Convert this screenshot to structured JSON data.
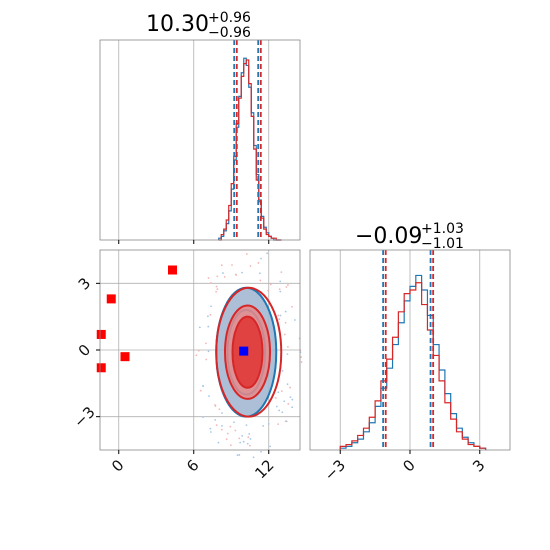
{
  "chart_data": {
    "type": "corner",
    "colors": {
      "sample_a": "#1f77b4",
      "sample_b": "#d62728",
      "marker": "#ff0000",
      "center": "#0000ff",
      "grid": "#b0b0b0"
    },
    "panels": {
      "hist_x": {
        "title": {
          "value": "10.30",
          "plus": "+0.96",
          "minus": "−0.96"
        },
        "xlim": [
          -1.5,
          14.5
        ],
        "x_ticks": [
          "0",
          "6",
          "12"
        ],
        "quantiles_x": [
          9.34,
          10.3,
          11.26
        ],
        "bins": [
          8.0,
          8.2,
          8.4,
          8.6,
          8.8,
          9.0,
          9.2,
          9.4,
          9.6,
          9.8,
          10.0,
          10.2,
          10.4,
          10.6,
          10.8,
          11.0,
          11.2,
          11.4,
          11.6,
          11.8,
          12.0,
          12.2,
          12.4,
          12.6,
          12.8,
          13.0
        ],
        "series": [
          {
            "color": "sample_a",
            "counts": [
              1,
              2,
              5,
              9,
              16,
              28,
              44,
              62,
              79,
              92,
              100,
              96,
              84,
              70,
              52,
              36,
              22,
              13,
              7,
              4,
              2,
              1,
              0,
              0,
              0
            ]
          },
          {
            "color": "sample_b",
            "counts": [
              0,
              3,
              6,
              11,
              19,
              31,
              46,
              64,
              78,
              90,
              97,
              99,
              86,
              68,
              50,
              33,
              21,
              12,
              6,
              3,
              2,
              1,
              1,
              0,
              0
            ]
          }
        ],
        "y_max": 110
      },
      "hist_y": {
        "title": {
          "value": "−0.09",
          "plus": "+1.03",
          "minus": "−1.01"
        },
        "xlim": [
          -4.3,
          4.3
        ],
        "x_ticks": [
          "−3",
          "0",
          "3"
        ],
        "quantiles_x": [
          -1.1,
          -0.09,
          0.94
        ],
        "bins": [
          -3.0,
          -2.75,
          -2.5,
          -2.25,
          -2.0,
          -1.75,
          -1.5,
          -1.25,
          -1.0,
          -0.75,
          -0.5,
          -0.25,
          0.0,
          0.25,
          0.5,
          0.75,
          1.0,
          1.25,
          1.5,
          1.75,
          2.0,
          2.25,
          2.5,
          2.75,
          3.0,
          3.25
        ],
        "series": [
          {
            "color": "sample_a",
            "counts": [
              1,
              2,
              4,
              6,
              10,
              15,
              24,
              34,
              45,
              58,
              70,
              82,
              90,
              96,
              88,
              74,
              58,
              44,
              31,
              20,
              12,
              7,
              4,
              2,
              1
            ]
          },
          {
            "color": "sample_b",
            "counts": [
              2,
              3,
              5,
              8,
              12,
              18,
              27,
              38,
              50,
              62,
              76,
              86,
              88,
              92,
              80,
              66,
              52,
              38,
              26,
              17,
              10,
              6,
              3,
              2,
              1
            ]
          }
        ],
        "y_max": 110
      },
      "scatter_2d": {
        "xlim": [
          -1.5,
          14.5
        ],
        "ylim": [
          -4.5,
          4.5
        ],
        "x_ticks": [
          "0",
          "6",
          "12"
        ],
        "y_ticks": [
          "3",
          "0",
          "−3"
        ],
        "contours": [
          {
            "color": "sample_a",
            "level": "outer",
            "cx": 10.2,
            "cy": -0.1,
            "rx": 2.4,
            "ry": 2.9
          },
          {
            "color": "sample_a",
            "level": "inner",
            "cx": 10.2,
            "cy": -0.1,
            "rx": 1.5,
            "ry": 1.9
          },
          {
            "color": "sample_b",
            "level": "outer",
            "cx": 10.4,
            "cy": -0.1,
            "rx": 2.6,
            "ry": 2.9
          },
          {
            "color": "sample_b",
            "level": "inner",
            "cx": 10.3,
            "cy": -0.1,
            "rx": 1.8,
            "ry": 2.1
          },
          {
            "color": "sample_b",
            "level": "core",
            "cx": 10.3,
            "cy": -0.1,
            "rx": 1.2,
            "ry": 1.6
          }
        ],
        "markers": [
          {
            "x": 4.3,
            "y": 3.6
          },
          {
            "x": -0.6,
            "y": 2.3
          },
          {
            "x": -1.4,
            "y": 0.7
          },
          {
            "x": 0.5,
            "y": -0.3
          },
          {
            "x": -1.4,
            "y": -0.8
          }
        ],
        "center": {
          "x": 10.0,
          "y": -0.05
        }
      }
    }
  }
}
